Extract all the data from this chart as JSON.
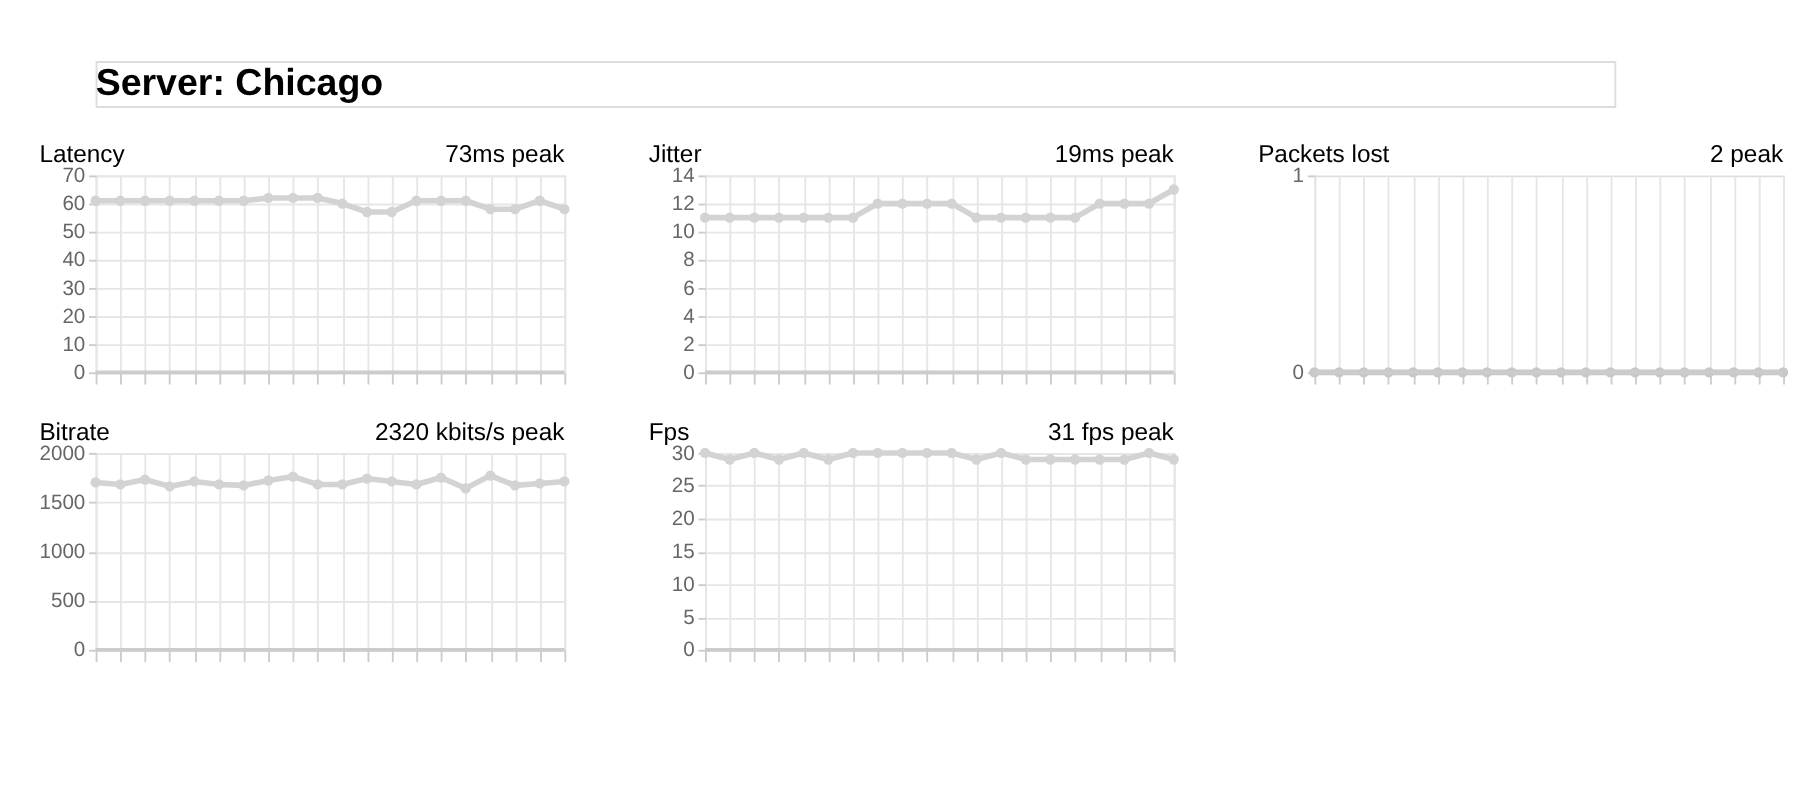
{
  "chart_data": [
    {
      "type": "other",
      "title": "Server: Chicago"
    },
    {
      "type": "line",
      "title": "Latency",
      "subtitle": "73ms peak",
      "categories": [
        null,
        null,
        null,
        null,
        null,
        null,
        null,
        null,
        null,
        null,
        null,
        null,
        null,
        null,
        null,
        null,
        null,
        null,
        null,
        null
      ],
      "series": [
        {
          "color": "#d3d3d3",
          "values": [
            61,
            61,
            61,
            61,
            61,
            61,
            61,
            62,
            62,
            62,
            60,
            57,
            57,
            61,
            61,
            61,
            58,
            58,
            61,
            58
          ]
        }
      ],
      "ylim": [
        0,
        70
      ],
      "yticks": [
        0,
        10,
        20,
        30,
        40,
        50,
        60,
        70
      ],
      "grid": true,
      "marker": "circle",
      "tick_labels": "y"
    },
    {
      "type": "line",
      "title": "Jitter",
      "subtitle": "19ms peak",
      "categories": [
        null,
        null,
        null,
        null,
        null,
        null,
        null,
        null,
        null,
        null,
        null,
        null,
        null,
        null,
        null,
        null,
        null,
        null,
        null,
        null
      ],
      "series": [
        {
          "color": "#d3d3d3",
          "values": [
            11,
            11,
            11,
            11,
            11,
            11,
            11,
            12,
            12,
            12,
            12,
            11,
            11,
            11,
            11,
            11,
            12,
            12,
            12,
            13
          ]
        }
      ],
      "ylim": [
        0,
        14
      ],
      "yticks": [
        0,
        2,
        4,
        6,
        8,
        10,
        12,
        14
      ],
      "grid": true,
      "marker": "circle",
      "tick_labels": "y"
    },
    {
      "type": "line",
      "title": "Packets lost",
      "subtitle": "2 peak",
      "categories": [
        null,
        null,
        null,
        null,
        null,
        null,
        null,
        null,
        null,
        null,
        null,
        null,
        null,
        null,
        null,
        null,
        null,
        null,
        null,
        null
      ],
      "series": [
        {
          "color": "#c8c8c8",
          "values": [
            0,
            0,
            0,
            0,
            0,
            0,
            0,
            0,
            0,
            0,
            0,
            0,
            0,
            0,
            0,
            0,
            0,
            0,
            0,
            0
          ]
        }
      ],
      "ylim": [
        0,
        1
      ],
      "yticks": [
        0,
        1
      ],
      "grid": "x",
      "marker": "circle",
      "tick_labels": "y"
    },
    {
      "type": "line",
      "title": "Bitrate",
      "subtitle": "2320 kbits/s peak",
      "categories": [
        null,
        null,
        null,
        null,
        null,
        null,
        null,
        null,
        null,
        null,
        null,
        null,
        null,
        null,
        null,
        null,
        null,
        null,
        null,
        null
      ],
      "series": [
        {
          "color": "#d3d3d3",
          "values": [
            1700,
            1680,
            1730,
            1660,
            1710,
            1680,
            1670,
            1720,
            1760,
            1680,
            1680,
            1740,
            1710,
            1680,
            1750,
            1640,
            1770,
            1670,
            1690,
            1710
          ]
        }
      ],
      "ylim": [
        0,
        2000
      ],
      "yticks": [
        0,
        500,
        1000,
        1500,
        2000
      ],
      "grid": true,
      "marker": "circle",
      "tick_labels": "y"
    },
    {
      "type": "line",
      "title": "Fps",
      "subtitle": "31 fps peak",
      "categories": [
        null,
        null,
        null,
        null,
        null,
        null,
        null,
        null,
        null,
        null,
        null,
        null,
        null,
        null,
        null,
        null,
        null,
        null,
        null,
        null
      ],
      "series": [
        {
          "color": "#d3d3d3",
          "values": [
            30,
            29,
            30,
            29,
            30,
            29,
            30,
            30,
            30,
            30,
            30,
            29,
            30,
            29,
            29,
            29,
            29,
            29,
            30,
            29
          ]
        }
      ],
      "ylim": [
        0,
        30
      ],
      "yticks": [
        0,
        5,
        10,
        15,
        20,
        25,
        30
      ],
      "grid": true,
      "marker": "circle",
      "tick_labels": "y"
    }
  ]
}
